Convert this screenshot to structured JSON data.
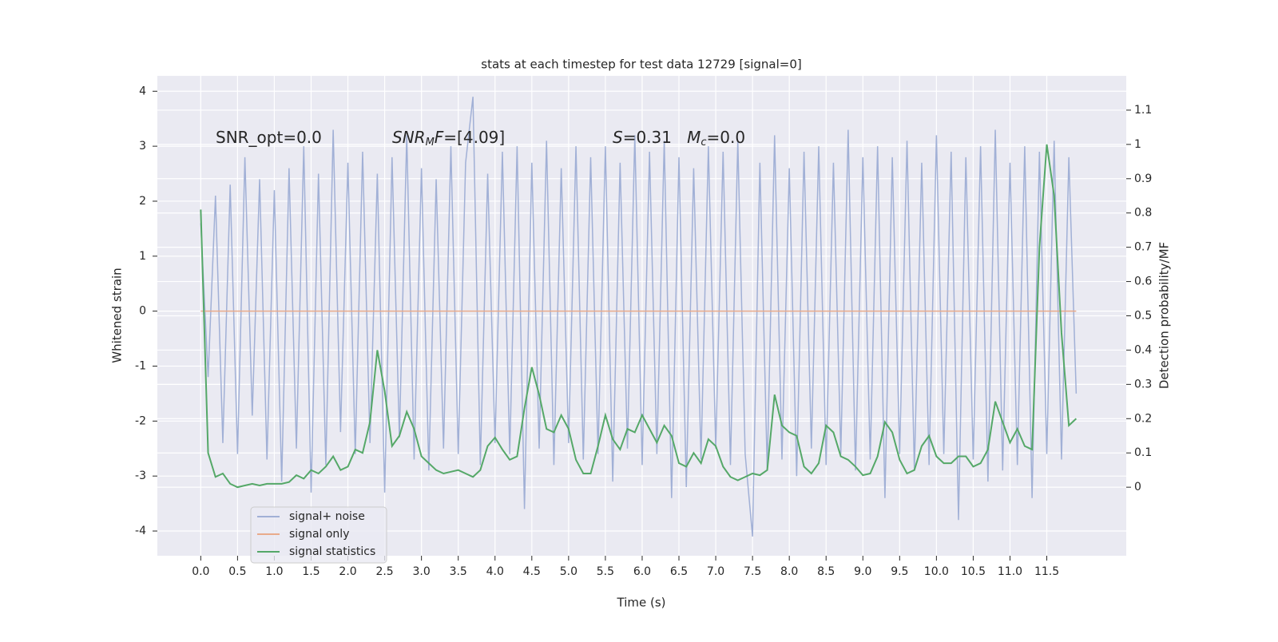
{
  "chart_data": {
    "type": "line",
    "title": "stats at each timestep for test data 12729 [signal=0]",
    "x_label": "Time (s)",
    "y_label": "Whitened strain",
    "y2_label": "Detection probability/MF",
    "annotations": [
      {
        "parts": [
          {
            "t": "SNR_opt=0.0",
            "style": "normal"
          }
        ]
      },
      {
        "parts": [
          {
            "t": "SNR",
            "style": "italic"
          },
          {
            "t": "M",
            "style": "sub"
          },
          {
            "t": "F",
            "style": "italic"
          },
          {
            "t": "=[4.09]",
            "style": "normal"
          }
        ]
      },
      {
        "parts": [
          {
            "t": "S",
            "style": "italic"
          },
          {
            "t": "=0.31   ",
            "style": "normal"
          },
          {
            "t": "M",
            "style": "italic"
          },
          {
            "t": "c",
            "style": "sub"
          },
          {
            "t": "=0.0",
            "style": "normal"
          }
        ]
      }
    ],
    "x": [
      0,
      0.1,
      0.2,
      0.3,
      0.4,
      0.5,
      0.6,
      0.7,
      0.8,
      0.9,
      1,
      1.1,
      1.2,
      1.3,
      1.4,
      1.5,
      1.6,
      1.7,
      1.8,
      1.9,
      2,
      2.1,
      2.2,
      2.3,
      2.4,
      2.5,
      2.6,
      2.7,
      2.8,
      2.9,
      3,
      3.1,
      3.2,
      3.3,
      3.4,
      3.5,
      3.6,
      3.7,
      3.8,
      3.9,
      4,
      4.1,
      4.2,
      4.3,
      4.4,
      4.5,
      4.6,
      4.7,
      4.8,
      4.9,
      5,
      5.1,
      5.2,
      5.3,
      5.4,
      5.5,
      5.6,
      5.7,
      5.8,
      5.9,
      6,
      6.1,
      6.2,
      6.3,
      6.4,
      6.5,
      6.6,
      6.7,
      6.8,
      6.9,
      7,
      7.1,
      7.2,
      7.3,
      7.4,
      7.5,
      7.6,
      7.7,
      7.8,
      7.9,
      8,
      8.1,
      8.2,
      8.3,
      8.4,
      8.5,
      8.6,
      8.7,
      8.8,
      8.9,
      9,
      9.1,
      9.2,
      9.3,
      9.4,
      9.5,
      9.6,
      9.7,
      9.8,
      9.9,
      10,
      10.1,
      10.2,
      10.3,
      10.4,
      10.5,
      10.6,
      10.7,
      10.8,
      10.9,
      11,
      11.1,
      11.2,
      11.3,
      11.4,
      11.5,
      11.6,
      11.7,
      11.8,
      11.9
    ],
    "series": [
      {
        "name": "signal+ noise",
        "color": "#a1b0d6",
        "axis": "y",
        "values": [
          1.6,
          -1.2,
          2.1,
          -2.4,
          2.3,
          -2.6,
          2.8,
          -1.9,
          2.4,
          -2.7,
          2.2,
          -3.1,
          2.6,
          -2.5,
          3.0,
          -3.3,
          2.5,
          -2.8,
          3.3,
          -2.2,
          2.7,
          -2.6,
          2.9,
          -2.4,
          2.5,
          -3.3,
          2.8,
          -2.3,
          3.2,
          -2.7,
          2.6,
          -2.9,
          2.4,
          -2.5,
          3.0,
          -2.6,
          2.7,
          3.9,
          -2.8,
          2.5,
          -2.4,
          2.9,
          -2.6,
          3.0,
          -3.6,
          2.7,
          -2.5,
          3.1,
          -2.8,
          2.6,
          -2.4,
          3.0,
          -2.7,
          2.8,
          -2.6,
          3.0,
          -3.1,
          2.7,
          -2.5,
          3.2,
          -2.8,
          2.9,
          -2.6,
          3.1,
          -3.4,
          2.8,
          -3.2,
          2.6,
          -2.7,
          3.0,
          -2.5,
          2.9,
          -2.8,
          3.1,
          -2.6,
          -4.1,
          2.7,
          -2.9,
          3.2,
          -2.7,
          2.6,
          -3.0,
          2.9,
          -2.5,
          3.0,
          -2.8,
          2.7,
          -2.6,
          3.3,
          -2.9,
          2.8,
          -2.7,
          3.0,
          -3.4,
          2.8,
          -2.6,
          3.1,
          -2.9,
          2.7,
          -2.8,
          3.2,
          -2.6,
          2.9,
          -3.8,
          2.8,
          -2.7,
          3.0,
          -3.1,
          3.3,
          -2.9,
          2.7,
          -2.8,
          3.0,
          -3.4,
          2.9,
          -2.6,
          3.1,
          -2.7,
          2.8,
          -1.5
        ]
      },
      {
        "name": "signal only",
        "color": "#e9ab8b",
        "axis": "y",
        "values": [
          0,
          0,
          0,
          0,
          0,
          0,
          0,
          0,
          0,
          0,
          0,
          0,
          0,
          0,
          0,
          0,
          0,
          0,
          0,
          0,
          0,
          0,
          0,
          0,
          0,
          0,
          0,
          0,
          0,
          0,
          0,
          0,
          0,
          0,
          0,
          0,
          0,
          0,
          0,
          0,
          0,
          0,
          0,
          0,
          0,
          0,
          0,
          0,
          0,
          0,
          0,
          0,
          0,
          0,
          0,
          0,
          0,
          0,
          0,
          0,
          0,
          0,
          0,
          0,
          0,
          0,
          0,
          0,
          0,
          0,
          0,
          0,
          0,
          0,
          0,
          0,
          0,
          0,
          0,
          0,
          0,
          0,
          0,
          0,
          0,
          0,
          0,
          0,
          0,
          0,
          0,
          0,
          0,
          0,
          0,
          0,
          0,
          0,
          0,
          0,
          0,
          0,
          0,
          0,
          0,
          0,
          0,
          0,
          0,
          0,
          0,
          0,
          0,
          0,
          0,
          0,
          0,
          0,
          0,
          0
        ]
      },
      {
        "name": "signal statistics",
        "color": "#55a868",
        "axis": "y2",
        "values": [
          0.81,
          0.1,
          0.03,
          0.04,
          0.01,
          0.0,
          0.005,
          0.01,
          0.005,
          0.01,
          0.01,
          0.01,
          0.015,
          0.035,
          0.025,
          0.05,
          0.04,
          0.06,
          0.09,
          0.05,
          0.06,
          0.11,
          0.1,
          0.19,
          0.4,
          0.28,
          0.12,
          0.15,
          0.22,
          0.17,
          0.09,
          0.07,
          0.05,
          0.04,
          0.045,
          0.05,
          0.04,
          0.03,
          0.05,
          0.12,
          0.145,
          0.11,
          0.08,
          0.09,
          0.23,
          0.35,
          0.27,
          0.17,
          0.16,
          0.21,
          0.17,
          0.08,
          0.04,
          0.04,
          0.12,
          0.21,
          0.14,
          0.11,
          0.17,
          0.16,
          0.21,
          0.17,
          0.13,
          0.18,
          0.15,
          0.07,
          0.06,
          0.1,
          0.07,
          0.14,
          0.12,
          0.06,
          0.03,
          0.02,
          0.03,
          0.04,
          0.035,
          0.05,
          0.27,
          0.18,
          0.16,
          0.15,
          0.06,
          0.04,
          0.07,
          0.18,
          0.16,
          0.09,
          0.08,
          0.06,
          0.035,
          0.04,
          0.09,
          0.19,
          0.16,
          0.08,
          0.04,
          0.05,
          0.12,
          0.15,
          0.09,
          0.07,
          0.07,
          0.09,
          0.09,
          0.06,
          0.07,
          0.11,
          0.25,
          0.19,
          0.13,
          0.17,
          0.12,
          0.11,
          0.7,
          1.0,
          0.85,
          0.45,
          0.18,
          0.2
        ]
      }
    ],
    "xlim": [
      -0.59,
      12.58
    ],
    "xticks": [
      0.0,
      0.5,
      1.0,
      1.5,
      2.0,
      2.5,
      3.0,
      3.5,
      4.0,
      4.5,
      5.0,
      5.5,
      6.0,
      6.5,
      7.0,
      7.5,
      8.0,
      8.5,
      9.0,
      9.5,
      10.0,
      10.5,
      11.0,
      11.5
    ],
    "ylim": [
      -4.45,
      4.28
    ],
    "yticks": [
      -4,
      -3,
      -2,
      -1,
      0,
      1,
      2,
      3,
      4
    ],
    "y2lim": [
      -0.2,
      1.2
    ],
    "y2ticks": [
      0.0,
      0.1,
      0.2,
      0.3,
      0.4,
      0.5,
      0.6,
      0.7,
      0.8,
      0.9,
      1.0,
      1.1
    ],
    "grid": true,
    "legend": "lower left"
  }
}
